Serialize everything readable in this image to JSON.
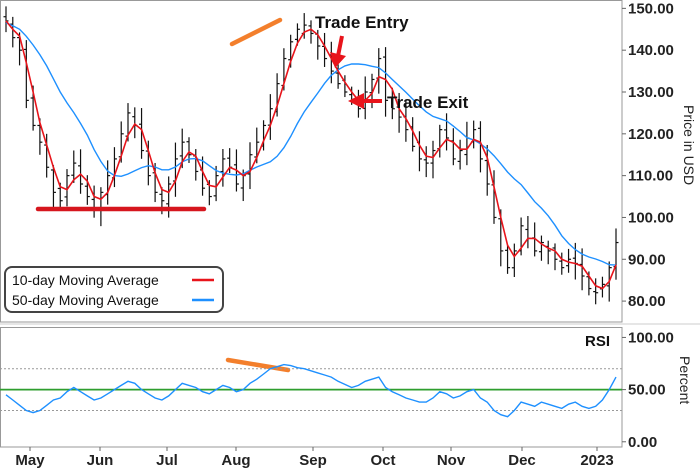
{
  "chart_data": [
    {
      "type": "ohlc",
      "xlabel": "",
      "ylabel": "Price in USD",
      "ylim": [
        75,
        152
      ],
      "yticks": [
        "150.00",
        "140.00",
        "130.00",
        "120.00",
        "110.00",
        "100.00",
        "90.00",
        "80.00"
      ],
      "x_months": [
        "May",
        "Jun",
        "Jul",
        "Aug",
        "Sep",
        "Oct",
        "Nov",
        "Dec",
        "2023"
      ],
      "closes": [
        147,
        143,
        140,
        128,
        122,
        118,
        112,
        106,
        104,
        110,
        113,
        108,
        105,
        102,
        106,
        110,
        114,
        120,
        125,
        122,
        116,
        110,
        106,
        104,
        108,
        114,
        118,
        115,
        111,
        107,
        105,
        110,
        114,
        112,
        108,
        110,
        115,
        118,
        122,
        126,
        132,
        138,
        142,
        145,
        146,
        144,
        141,
        138,
        135,
        132,
        130,
        128,
        126,
        130,
        133,
        138,
        128,
        126,
        124,
        121,
        117,
        114,
        113,
        116,
        121,
        119,
        114,
        116,
        119,
        121,
        114,
        108,
        100,
        92,
        88,
        92,
        98,
        95,
        92,
        94,
        92,
        90,
        88,
        90,
        89,
        86,
        83,
        82,
        84,
        88,
        94
      ],
      "annotations": [
        "Trade Entry",
        "Trade Exit"
      ],
      "legend": {
        "position": "bottom-left",
        "entries": [
          {
            "name": "10-day Moving Average",
            "color": "#e8141b"
          },
          {
            "name": "50-day Moving Average",
            "color": "#1e90ff"
          }
        ]
      },
      "colors": {
        "price": "#111111",
        "ma10": "#e8141b",
        "ma50": "#1e90ff",
        "marker": "#f37f2c",
        "support": "#d6161e",
        "arrow": "#e8141b"
      }
    },
    {
      "type": "line",
      "title": "RSI",
      "ylabel": "Percent",
      "ylim": [
        -5,
        110
      ],
      "yticks": [
        "100.00",
        "50.00",
        "0.00"
      ],
      "reference_lines": [
        30,
        50,
        70
      ],
      "values": [
        45,
        40,
        35,
        30,
        28,
        30,
        35,
        40,
        42,
        48,
        52,
        48,
        44,
        40,
        42,
        46,
        50,
        54,
        58,
        56,
        50,
        46,
        42,
        40,
        44,
        50,
        56,
        54,
        52,
        48,
        46,
        50,
        54,
        52,
        48,
        50,
        56,
        60,
        65,
        70,
        72,
        74,
        73,
        71,
        70,
        68,
        66,
        64,
        62,
        58,
        55,
        52,
        54,
        58,
        60,
        62,
        52,
        48,
        45,
        42,
        40,
        38,
        38,
        42,
        48,
        46,
        42,
        44,
        48,
        50,
        42,
        38,
        30,
        26,
        24,
        30,
        38,
        36,
        34,
        38,
        36,
        34,
        32,
        36,
        38,
        34,
        32,
        34,
        40,
        50,
        62
      ],
      "colors": {
        "line": "#1e90ff",
        "midline": "#2e9e2e",
        "refline": "#999999"
      }
    }
  ]
}
